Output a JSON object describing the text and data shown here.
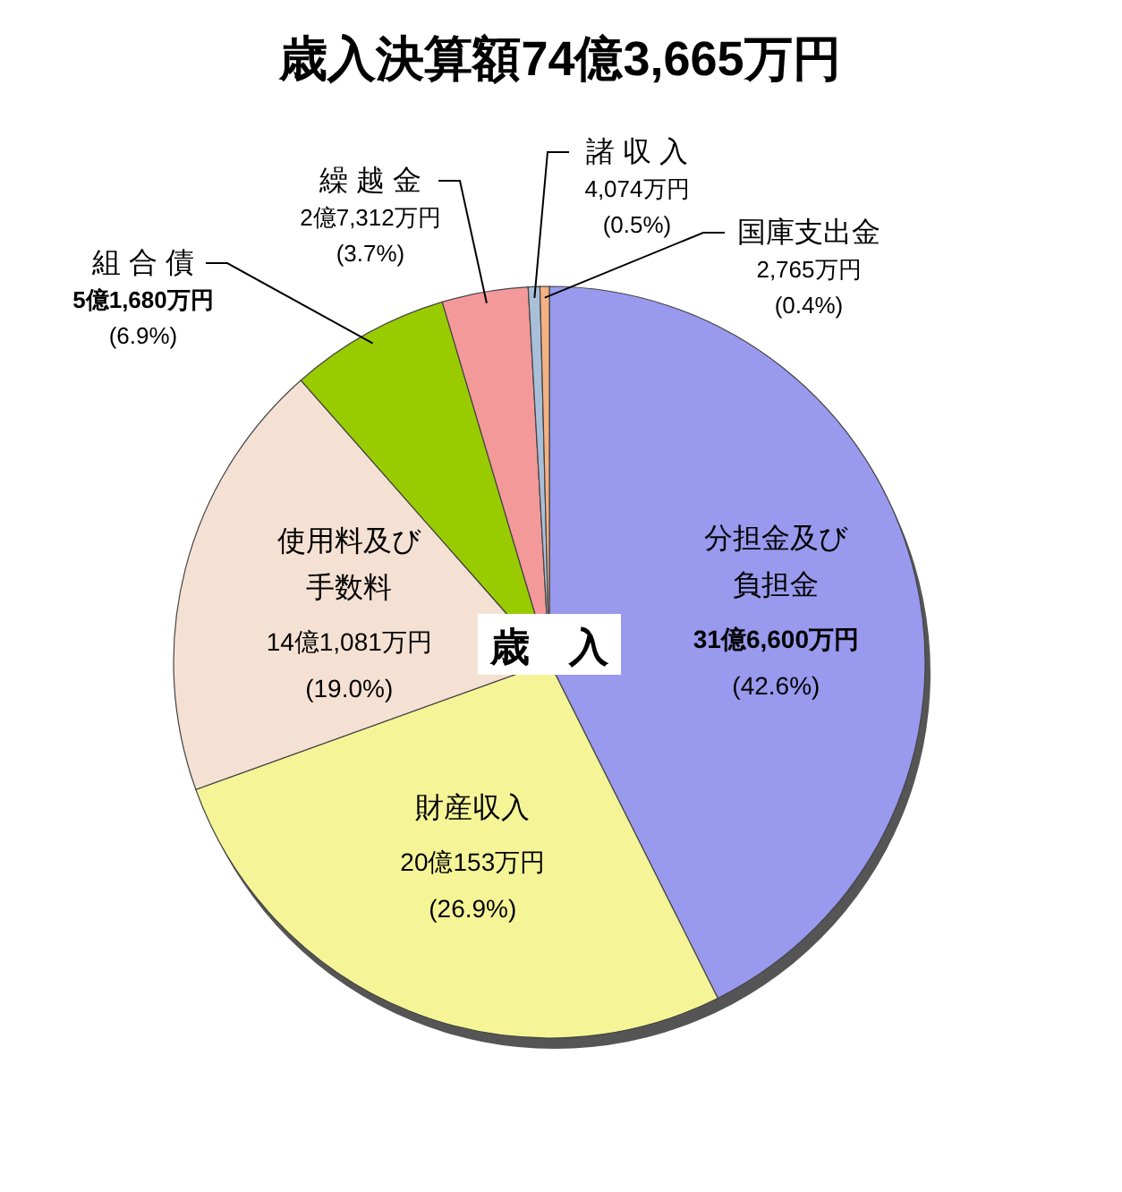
{
  "chart_data": {
    "type": "pie",
    "title": "歳入決算額74億3,665万円",
    "categories": [
      "分担金及び負担金",
      "財産収入",
      "使用料及び手数料",
      "組 合 債",
      "繰 越 金",
      "諸 収 入",
      "国庫支出金"
    ],
    "values": [
      42.6,
      26.9,
      19.0,
      6.9,
      3.7,
      0.5,
      0.4
    ],
    "value_labels": [
      "31億6,600万円\n(42.6%)",
      "20億153万円\n(26.9%)",
      "14億1,081万円\n(19.0%)",
      "5億1,680万円\n(6.9%)",
      "2億7,312万円\n(3.7%)",
      "4,074万円\n(0.5%)",
      "2,765万円\n(0.4%)"
    ],
    "colors": [
      "#9999ee",
      "#f5f598",
      "#f5e1d3",
      "#99cc00",
      "#f4999a",
      "#a9bfd9",
      "#f4b183"
    ],
    "annotations": [
      "歳　入"
    ]
  }
}
